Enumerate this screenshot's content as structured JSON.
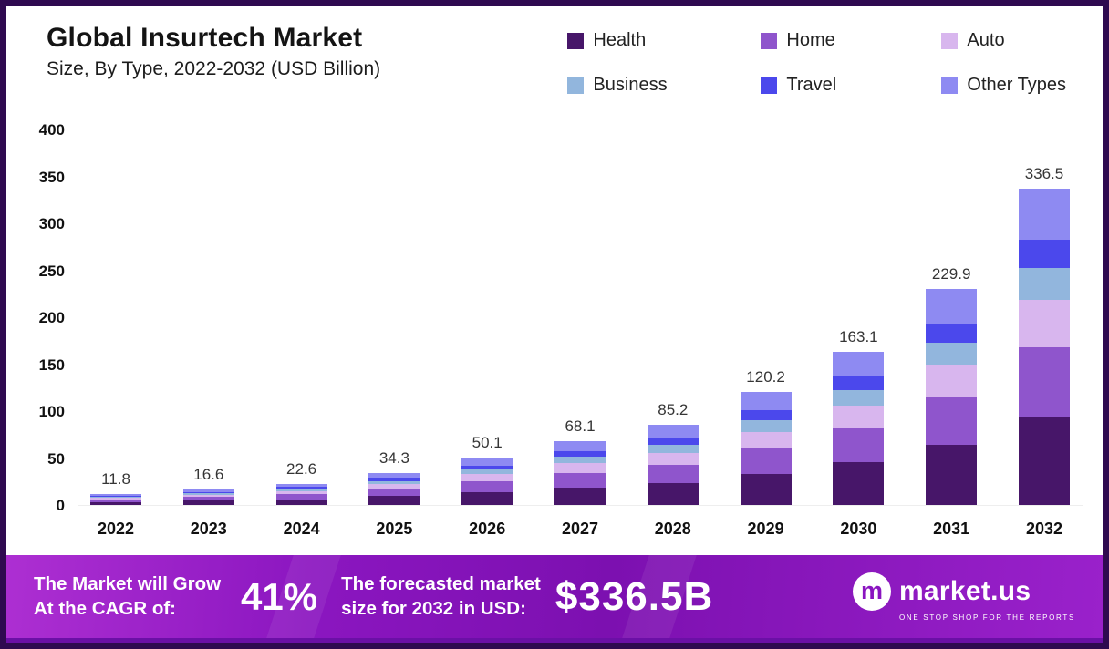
{
  "header": {
    "title": "Global Insurtech Market",
    "subtitle": "Size, By Type, 2022-2032 (USD Billion)"
  },
  "legend": {
    "items": [
      {
        "label": "Health",
        "color": "#471669"
      },
      {
        "label": "Home",
        "color": "#8f55cc"
      },
      {
        "label": "Auto",
        "color": "#d8b6ee"
      },
      {
        "label": "Business",
        "color": "#92b6dd"
      },
      {
        "label": "Travel",
        "color": "#4b48ec"
      },
      {
        "label": "Other Types",
        "color": "#8e8af2"
      }
    ]
  },
  "chart_data": {
    "type": "bar",
    "stacked": true,
    "title": "Global Insurtech Market Size, By Type, 2022-2032 (USD Billion)",
    "xlabel": "",
    "ylabel": "USD Billion",
    "ylim": [
      0,
      400
    ],
    "yticks": [
      0,
      50,
      100,
      150,
      200,
      250,
      300,
      350,
      400
    ],
    "grid": false,
    "legend_position": "top-right",
    "categories": [
      "2022",
      "2023",
      "2024",
      "2025",
      "2026",
      "2027",
      "2028",
      "2029",
      "2030",
      "2031",
      "2032"
    ],
    "totals": [
      11.8,
      16.6,
      22.6,
      34.3,
      50.1,
      68.1,
      85.2,
      120.2,
      163.1,
      229.9,
      336.5
    ],
    "series": [
      {
        "name": "Health",
        "color": "#471669",
        "values": [
          3.3,
          4.6,
          6.3,
          9.5,
          13.9,
          18.9,
          23.6,
          33.3,
          45.2,
          63.7,
          93.2
        ]
      },
      {
        "name": "Home",
        "color": "#8f55cc",
        "values": [
          2.6,
          3.7,
          5.0,
          7.6,
          11.2,
          15.2,
          19.0,
          26.8,
          36.4,
          51.3,
          75.0
        ]
      },
      {
        "name": "Auto",
        "color": "#d8b6ee",
        "values": [
          1.8,
          2.5,
          3.4,
          5.1,
          7.5,
          10.1,
          12.7,
          17.9,
          24.3,
          34.3,
          50.1
        ]
      },
      {
        "name": "Business",
        "color": "#92b6dd",
        "values": [
          1.2,
          1.7,
          2.3,
          3.5,
          5.1,
          6.9,
          8.6,
          12.1,
          16.5,
          23.2,
          34.0
        ]
      },
      {
        "name": "Travel",
        "color": "#4b48ec",
        "values": [
          1.1,
          1.5,
          2.0,
          3.1,
          4.5,
          6.1,
          7.6,
          10.7,
          14.5,
          20.5,
          29.9
        ]
      },
      {
        "name": "Other Types",
        "color": "#8e8af2",
        "values": [
          1.8,
          2.6,
          3.6,
          5.5,
          7.9,
          10.9,
          13.7,
          19.4,
          26.2,
          36.9,
          54.3
        ]
      }
    ]
  },
  "banner": {
    "cagr_label_line1": "The Market will Grow",
    "cagr_label_line2": "At the CAGR of:",
    "cagr_value": "41%",
    "forecast_label_line1": "The forecasted market",
    "forecast_label_line2": "size for 2032 in USD:",
    "forecast_value": "$336.5B",
    "brand": "market.us",
    "brand_tagline": "ONE STOP SHOP FOR THE REPORTS",
    "accent_color": "#8a14c0"
  }
}
